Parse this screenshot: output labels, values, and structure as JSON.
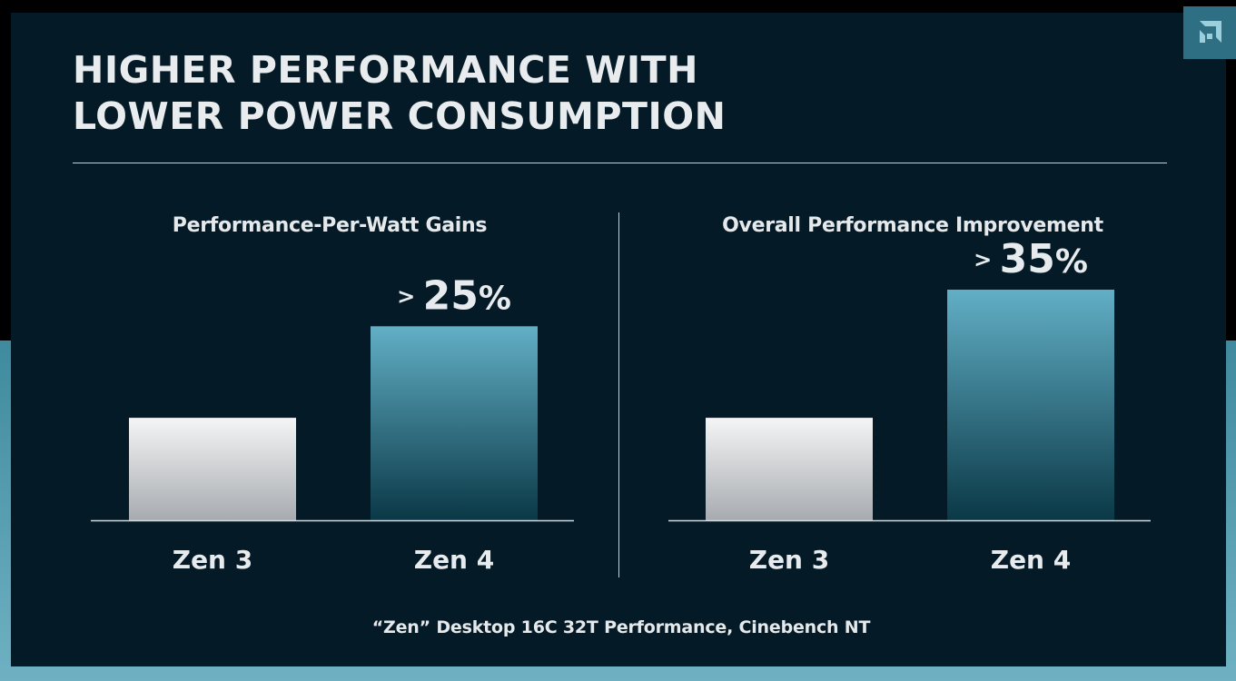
{
  "title_lines": [
    "HIGHER PERFORMANCE WITH",
    "LOWER POWER CONSUMPTION"
  ],
  "footnote": "“Zen” Desktop 16C 32T Performance, Cinebench NT",
  "logo_icon": "amd-logo-icon",
  "colors": {
    "background": "#041b27",
    "bar_baseline": "#cfd4d8",
    "bar_improved": "#5ba8c0"
  },
  "chart_data": [
    {
      "type": "bar",
      "title": "Performance-Per-Watt Gains",
      "categories": [
        "Zen 3",
        "Zen 4"
      ],
      "values": [
        100,
        125
      ],
      "ylim": [
        72,
        136
      ],
      "data_labels": [
        null,
        {
          "prefix": ">",
          "number": "25",
          "suffix": "%"
        }
      ],
      "xlabel": "",
      "ylabel": "",
      "grid": false
    },
    {
      "type": "bar",
      "title": "Overall Performance Improvement",
      "categories": [
        "Zen 3",
        "Zen 4"
      ],
      "values": [
        100,
        135
      ],
      "ylim": [
        72,
        136
      ],
      "data_labels": [
        null,
        {
          "prefix": ">",
          "number": "35",
          "suffix": "%"
        }
      ],
      "xlabel": "",
      "ylabel": "",
      "grid": false
    }
  ]
}
